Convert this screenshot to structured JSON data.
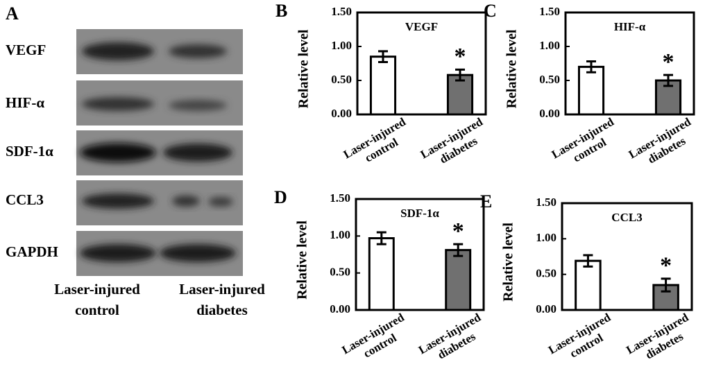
{
  "blot": {
    "panel_label": "A",
    "rows": [
      "VEGF",
      "HIF-α",
      "SDF-1α",
      "CCL3",
      "GAPDH"
    ],
    "columns": [
      "Laser-injured control",
      "Laser-injured diabetes"
    ]
  },
  "chart_data": [
    {
      "type": "bar",
      "panel_label": "B",
      "title": "VEGF",
      "y_label": "Relative level",
      "categories": [
        "Laser-injured control",
        "Laser-injured diabetes"
      ],
      "values": [
        0.85,
        0.58
      ],
      "errors": [
        0.08,
        0.08
      ],
      "colors": [
        "#ffffff",
        "#707070"
      ],
      "annotations": [
        null,
        "*"
      ],
      "ylim": [
        0,
        1.5
      ],
      "yticks": [
        {
          "value": 0,
          "label": "0.00"
        },
        {
          "value": 0.5,
          "label": "0.50"
        },
        {
          "value": 1,
          "label": "1.00"
        },
        {
          "value": 1.5,
          "label": "1.50"
        }
      ]
    },
    {
      "type": "bar",
      "panel_label": "C",
      "title": "HIF-α",
      "y_label": "Relative level",
      "categories": [
        "Laser-injured control",
        "Laser-injured diabetes"
      ],
      "values": [
        0.7,
        0.5
      ],
      "errors": [
        0.08,
        0.08
      ],
      "colors": [
        "#ffffff",
        "#707070"
      ],
      "annotations": [
        null,
        "*"
      ],
      "ylim": [
        0,
        1.5
      ],
      "yticks": [
        {
          "value": 0,
          "label": "0.00"
        },
        {
          "value": 0.5,
          "label": "0.50"
        },
        {
          "value": 1,
          "label": "1.00"
        },
        {
          "value": 1.5,
          "label": "1.50"
        }
      ]
    },
    {
      "type": "bar",
      "panel_label": "D",
      "title": "SDF-1α",
      "y_label": "Relative level",
      "categories": [
        "Laser-injured control",
        "Laser-injured diabetes"
      ],
      "values": [
        0.97,
        0.81
      ],
      "errors": [
        0.08,
        0.08
      ],
      "colors": [
        "#ffffff",
        "#707070"
      ],
      "annotations": [
        null,
        "*"
      ],
      "ylim": [
        0,
        1.5
      ],
      "yticks": [
        {
          "value": 0,
          "label": "0.00"
        },
        {
          "value": 0.5,
          "label": "0.50"
        },
        {
          "value": 1,
          "label": "1.00"
        },
        {
          "value": 1.5,
          "label": "1.50"
        }
      ]
    },
    {
      "type": "bar",
      "panel_label": "E",
      "title": "CCL3",
      "y_label": "Relative level",
      "categories": [
        "Laser-injured control",
        "Laser-injured diabetes"
      ],
      "values": [
        0.69,
        0.35
      ],
      "errors": [
        0.08,
        0.09
      ],
      "colors": [
        "#ffffff",
        "#707070"
      ],
      "annotations": [
        null,
        "*"
      ],
      "ylim": [
        0,
        1.5
      ],
      "yticks": [
        {
          "value": 0,
          "label": "0.00"
        },
        {
          "value": 0.5,
          "label": "0.50"
        },
        {
          "value": 1,
          "label": "1.00"
        },
        {
          "value": 1.5,
          "label": "1.50"
        }
      ]
    }
  ]
}
